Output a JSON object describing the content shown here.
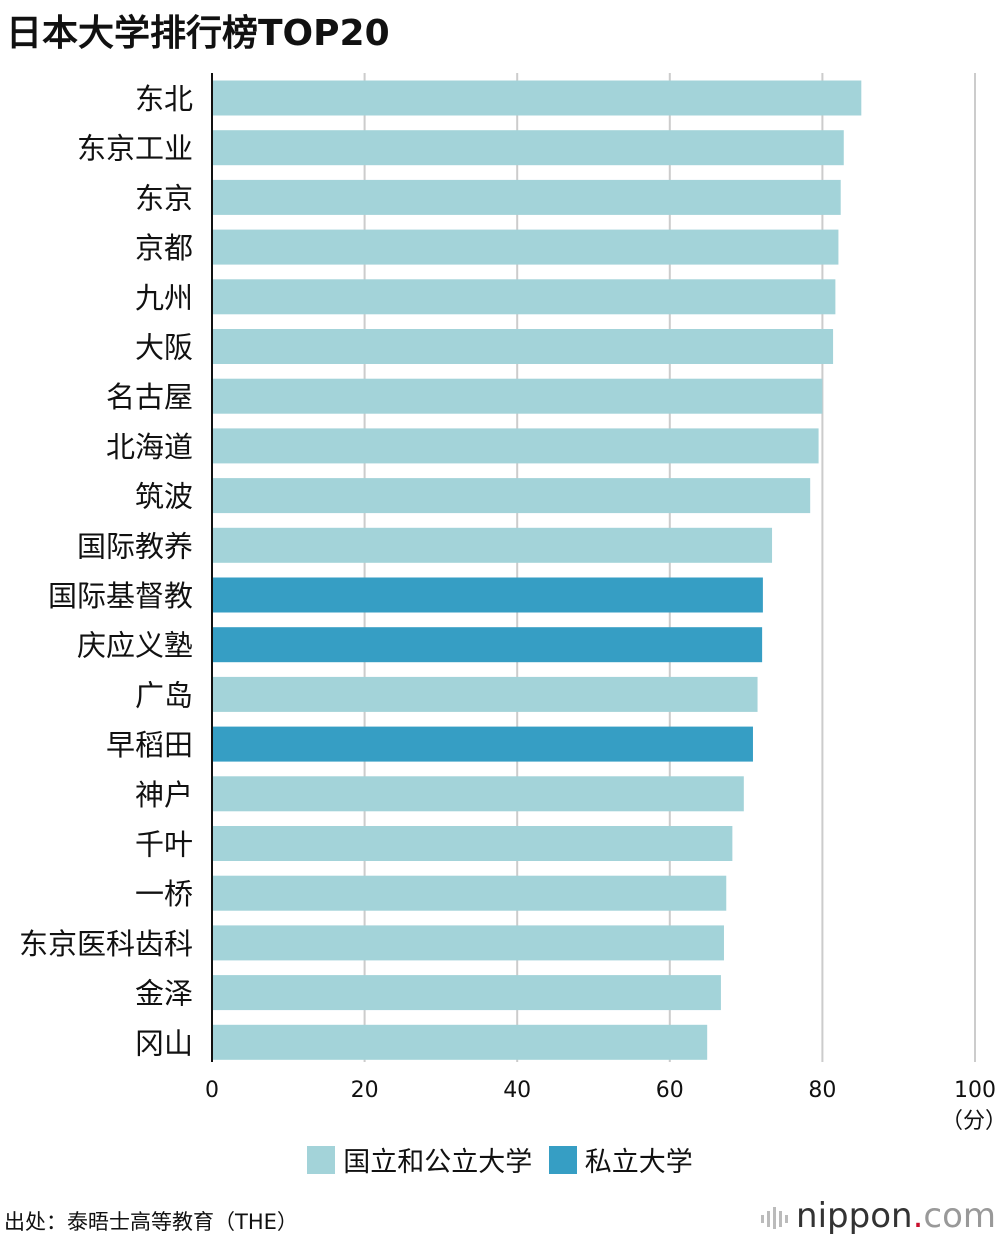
{
  "title": "日本大学排行榜TOP20",
  "legend": [
    {
      "label": "国立和公立大学",
      "color": "#a3d3d9"
    },
    {
      "label": "私立大学",
      "color": "#369ec4"
    }
  ],
  "source": "出处：泰晤士高等教育（THE）",
  "logo": {
    "name": "nippon",
    "dot": ".",
    "tld": "com"
  },
  "chart_data": {
    "type": "bar",
    "orientation": "horizontal",
    "title": "日本大学排行榜TOP20",
    "unit_label": "（分）",
    "xlim": [
      0,
      100
    ],
    "ticks": [
      "0",
      "20",
      "40",
      "60",
      "80",
      "100"
    ],
    "grid": true,
    "categories": [
      "东北",
      "东京工业",
      "东京",
      "京都",
      "九州",
      "大阪",
      "名古屋",
      "北海道",
      "筑波",
      "国际教养",
      "国际基督教",
      "庆应义塾",
      "广岛",
      "早稻田",
      "神户",
      "千叶",
      "一桥",
      "东京医科齿科",
      "金泽",
      "冈山"
    ],
    "values": [
      85.1,
      82.8,
      82.4,
      82.1,
      81.7,
      81.4,
      80.0,
      79.5,
      78.4,
      73.4,
      72.2,
      72.1,
      71.5,
      70.9,
      69.7,
      68.2,
      67.4,
      67.1,
      66.7,
      64.9
    ],
    "types": [
      "public",
      "public",
      "public",
      "public",
      "public",
      "public",
      "public",
      "public",
      "public",
      "public",
      "private",
      "private",
      "public",
      "private",
      "public",
      "public",
      "public",
      "public",
      "public",
      "public"
    ],
    "colors": {
      "public": "#a3d3d9",
      "private": "#369ec4"
    }
  }
}
